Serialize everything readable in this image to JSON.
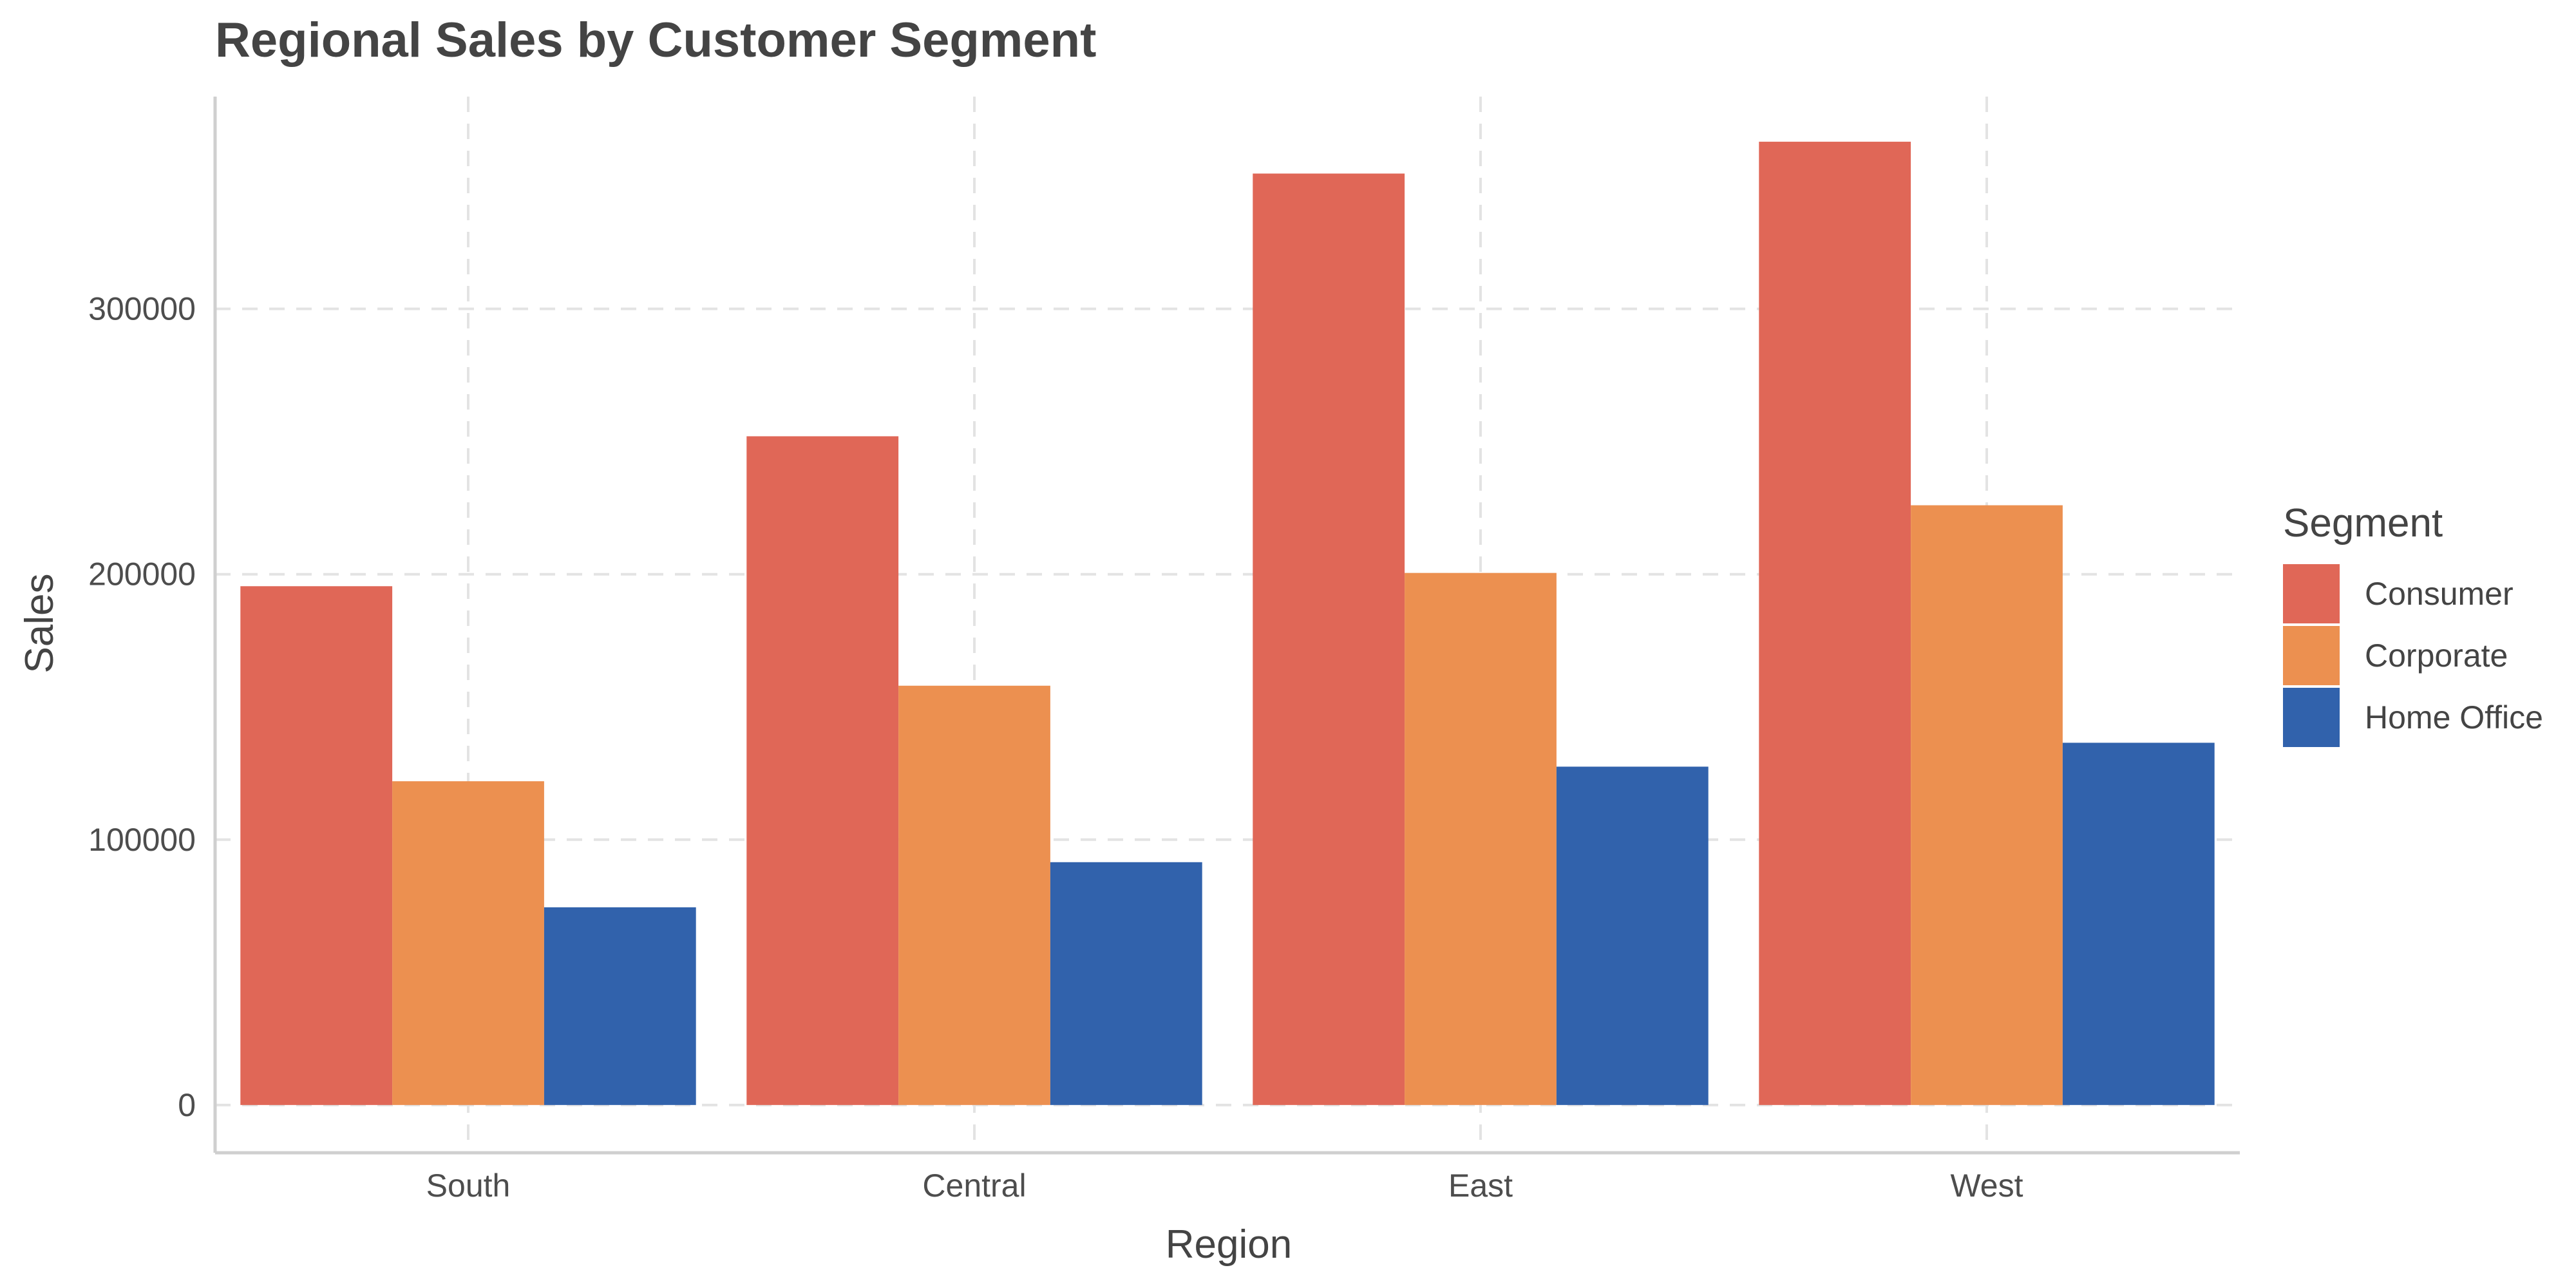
{
  "chart_data": {
    "type": "bar",
    "title": "Regional Sales by Customer Segment",
    "xlabel": "Region",
    "ylabel": "Sales",
    "categories": [
      "South",
      "Central",
      "East",
      "West"
    ],
    "series": [
      {
        "name": "Consumer",
        "color": "#E06757",
        "values": [
          195500,
          252000,
          351000,
          363000
        ]
      },
      {
        "name": "Corporate",
        "color": "#EC9050",
        "values": [
          122000,
          158000,
          200500,
          226000
        ]
      },
      {
        "name": "Home Office",
        "color": "#3162AC",
        "values": [
          74500,
          91500,
          127500,
          136500
        ]
      }
    ],
    "ylim": [
      -18000,
      380000
    ],
    "yticks": [
      0,
      100000,
      200000,
      300000
    ],
    "ytick_labels": [
      "0",
      "100000",
      "200000",
      "300000"
    ],
    "grid": true,
    "legend": {
      "title": "Segment",
      "position": "right"
    }
  }
}
